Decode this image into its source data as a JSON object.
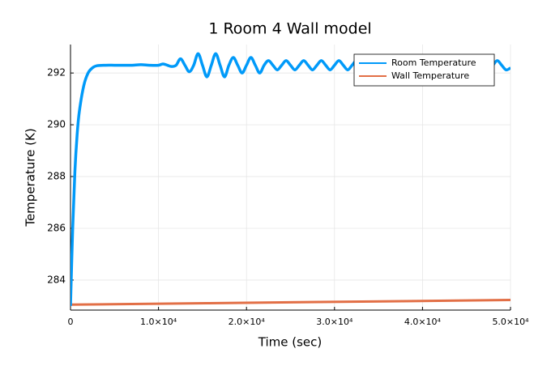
{
  "chart_data": {
    "type": "line",
    "title": "1 Room 4 Wall model",
    "xlabel": "Time (sec)",
    "ylabel": "Temperature (K)",
    "xlim": [
      0,
      50000
    ],
    "ylim": [
      282.84,
      293.1
    ],
    "xticks": [
      0,
      {
        "value": 10000,
        "label": "1.0×10⁴"
      },
      {
        "value": 20000,
        "label": "2.0×10⁴"
      },
      {
        "value": 30000,
        "label": "3.0×10⁴"
      },
      {
        "value": 40000,
        "label": "4.0×10⁴"
      },
      {
        "value": 50000,
        "label": "5.0×10⁴"
      }
    ],
    "yticks": [
      284,
      286,
      288,
      290,
      292
    ],
    "grid": true,
    "legend": "top-right",
    "series": [
      {
        "name": "Room Temperature",
        "color": "#009af9",
        "x": [
          0,
          250,
          500,
          750,
          1000,
          1500,
          2000,
          2500,
          3000,
          4000,
          5000,
          6000,
          7000,
          8000,
          9000,
          10000,
          10500,
          11000,
          11500,
          12000,
          12500,
          13000,
          13500,
          14000,
          14500,
          15000,
          15500,
          16000,
          16500,
          17000,
          17500,
          18000,
          18500,
          19000,
          19500,
          20000,
          20500,
          21000,
          21500,
          22000,
          22500,
          23000,
          23500,
          24000,
          24500,
          25000,
          25500,
          26000,
          26500,
          27000,
          27500,
          28000,
          28500,
          29000,
          29500,
          30000,
          30500,
          31000,
          31500,
          32000,
          32500,
          33000,
          33500,
          34000,
          34500,
          35000,
          35500,
          36000,
          36500,
          37000,
          37500,
          38000,
          38500,
          39000,
          39500,
          40000,
          40500,
          41000,
          41500,
          42000,
          42500,
          43000,
          43500,
          44000,
          44500,
          45000,
          45500,
          46000,
          46500,
          47000,
          47500,
          48000,
          48500,
          49000,
          49500,
          50000
        ],
        "values": [
          283.0,
          286.0,
          288.2,
          289.6,
          290.5,
          291.5,
          292.0,
          292.2,
          292.28,
          292.3,
          292.3,
          292.3,
          292.3,
          292.32,
          292.3,
          292.3,
          292.35,
          292.3,
          292.25,
          292.3,
          292.55,
          292.3,
          292.05,
          292.3,
          292.75,
          292.3,
          291.85,
          292.3,
          292.75,
          292.3,
          291.85,
          292.3,
          292.6,
          292.3,
          292.0,
          292.3,
          292.6,
          292.3,
          292.0,
          292.3,
          292.48,
          292.3,
          292.12,
          292.3,
          292.48,
          292.3,
          292.12,
          292.3,
          292.48,
          292.3,
          292.12,
          292.3,
          292.48,
          292.3,
          292.12,
          292.3,
          292.48,
          292.3,
          292.12,
          292.3,
          292.48,
          292.3,
          292.12,
          292.3,
          292.48,
          292.3,
          292.12,
          292.3,
          292.48,
          292.3,
          292.12,
          292.3,
          292.48,
          292.3,
          292.12,
          292.3,
          292.48,
          292.3,
          292.12,
          292.3,
          292.48,
          292.3,
          292.12,
          292.3,
          292.48,
          292.3,
          292.12,
          292.3,
          292.48,
          292.3,
          292.12,
          292.3,
          292.48,
          292.3,
          292.12,
          292.2
        ]
      },
      {
        "name": "Wall Temperature",
        "color": "#e26f46",
        "x": [
          0,
          25000,
          50000
        ],
        "values": [
          283.05,
          283.14,
          283.23
        ]
      }
    ]
  }
}
